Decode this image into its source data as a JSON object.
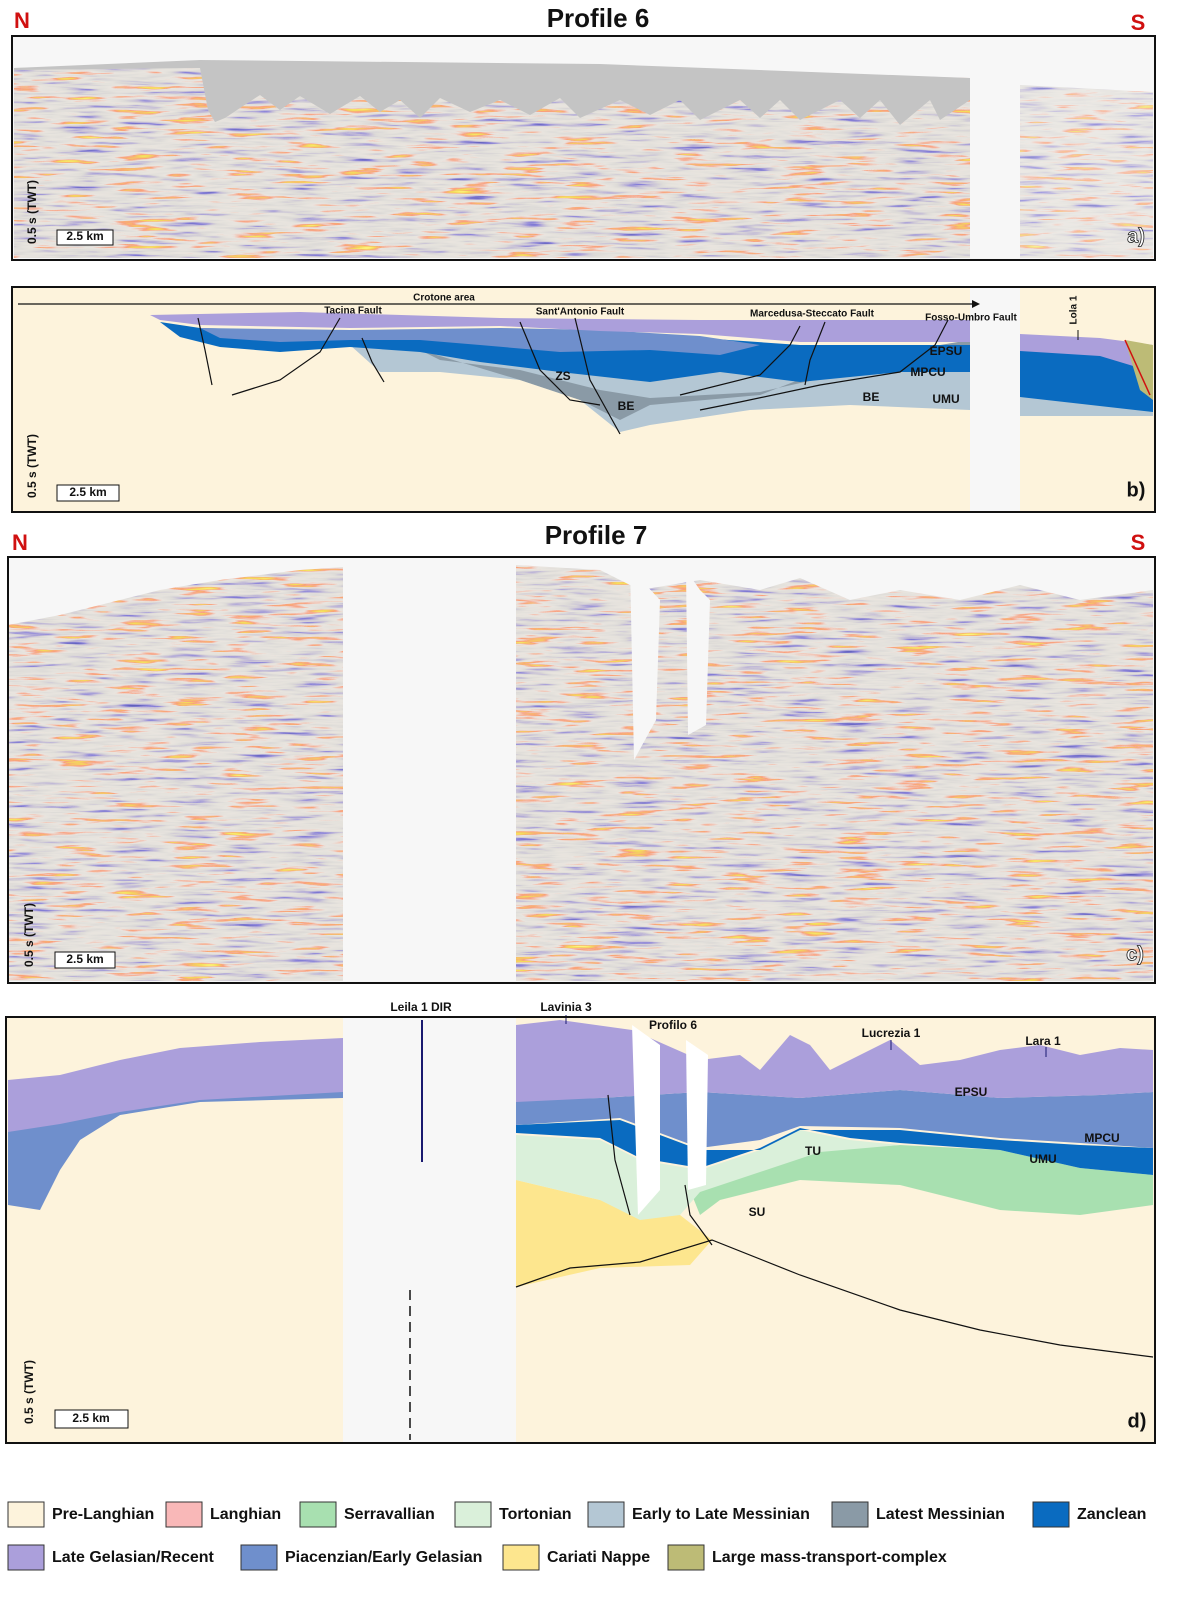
{
  "profiles": [
    {
      "title": "Profile 6",
      "north": "N",
      "south": "S",
      "panels": [
        {
          "label": "a)",
          "time_scale": "0.5 s (TWT)",
          "distance_scale": "2.5 km"
        },
        {
          "label": "b)",
          "time_scale": "0.5 s (TWT)",
          "distance_scale": "2.5 km",
          "annotations": [
            "Crotone area",
            "Tacina Fault",
            "Sant'Antonio Fault",
            "Marcedusa-Steccato Fault",
            "Fosso-Umbro Fault",
            "Lola 1",
            "EPSU",
            "MPCU",
            "UMU",
            "ZS",
            "BE",
            "BE"
          ]
        }
      ]
    },
    {
      "title": "Profile 7",
      "north": "N",
      "south": "S",
      "panels": [
        {
          "label": "c)",
          "time_scale": "0.5 s (TWT)",
          "distance_scale": "2.5 km"
        },
        {
          "label": "d)",
          "time_scale": "0.5 s (TWT)",
          "distance_scale": "2.5 km",
          "annotations": [
            "Leila 1 DIR",
            "Lavinia 3",
            "Profilo 6",
            "Lucrezia 1",
            "Lara 1",
            "EPSU",
            "TU",
            "MPCU",
            "UMU",
            "SU"
          ]
        }
      ]
    }
  ],
  "legend": [
    {
      "label": "Pre-Langhian",
      "color": "#fdf3dc"
    },
    {
      "label": "Langhian",
      "color": "#f9b8b8"
    },
    {
      "label": "Serravallian",
      "color": "#a8e0b0"
    },
    {
      "label": "Tortonian",
      "color": "#daf0da"
    },
    {
      "label": "Early to Late Messinian",
      "color": "#b4c7d4"
    },
    {
      "label": "Latest Messinian",
      "color": "#8a9aa6"
    },
    {
      "label": "Zanclean",
      "color": "#0a6bc0"
    },
    {
      "label": "Late Gelasian/Recent",
      "color": "#ab9fdb"
    },
    {
      "label": "Piacenzian/Early Gelasian",
      "color": "#6f8fcc"
    },
    {
      "label": "Cariati Nappe",
      "color": "#fde68e"
    },
    {
      "label": "Large mass-transport-complex",
      "color": "#bdbb76"
    }
  ]
}
